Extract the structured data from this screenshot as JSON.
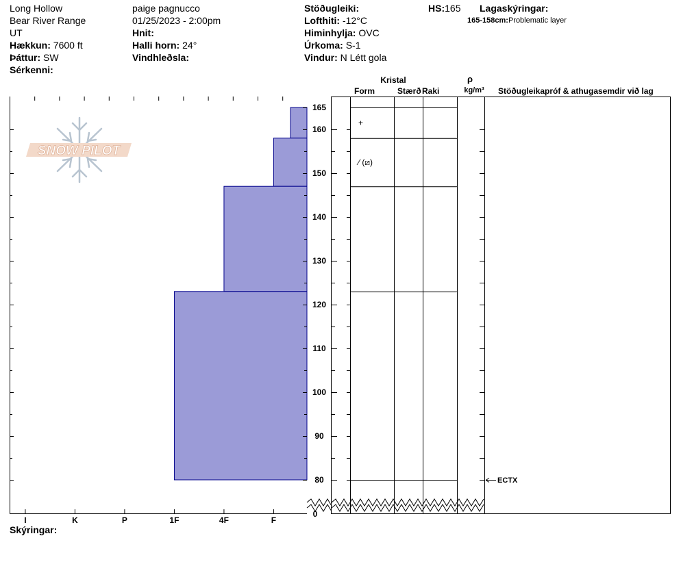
{
  "header": {
    "location": "Long Hollow",
    "range": "Bear River Range",
    "state": "UT",
    "elevation_label": "Hækkun:",
    "elevation": "7600 ft",
    "aspect_label": "Þáttur:",
    "aspect": "SW",
    "features_label": "Sérkenni:",
    "observer": "paige pagnucco",
    "datetime": "01/25/2023 - 2:00pm",
    "coords_label": "Hnit:",
    "slope_label": "Halli horn:",
    "slope": "24°",
    "wind_loading_label": "Vindhleðsla:",
    "stability_label": "Stöðugleiki:",
    "air_temp_label": "Lofthiti:",
    "air_temp": "-12°C",
    "sky_label": "Himinhylja:",
    "sky": "OVC",
    "precip_label": "Úrkoma:",
    "precip": "S-1",
    "wind_label": "Vindur:",
    "wind": "N Létt gola",
    "hs_label": "HS:",
    "hs": "165",
    "legend_label": "Lagaskýringar:",
    "legend_range": "165-158cm:",
    "legend_text": "Problematic layer",
    "notes_label": "Skýringar:"
  },
  "logo_text": "SNOW PILOT",
  "columns": {
    "crystal": "Kristal",
    "form": "Form",
    "size": "Stærð",
    "moisture": "Raki",
    "rho": "ρ",
    "density_unit": "kg/m³",
    "comments": "Stöðugleikapróf & athugasemdir við lag"
  },
  "colors": {
    "layer_fill": "#9b9bd7",
    "layer_stroke": "#00008b"
  },
  "chart_data": {
    "type": "bar",
    "y_axis": {
      "min": 0,
      "max": 165,
      "ticks": [
        80,
        90,
        100,
        110,
        120,
        130,
        140,
        150,
        160,
        165
      ],
      "zero_label": "0",
      "break_below": 80
    },
    "x_axis": {
      "categories": [
        "I",
        "K",
        "P",
        "1F",
        "4F",
        "F"
      ]
    },
    "layers": [
      {
        "top": 165,
        "bottom": 158,
        "hardness": "F-",
        "hardness_value": 0.33,
        "form_symbol": "+"
      },
      {
        "top": 158,
        "bottom": 147,
        "hardness": "F",
        "hardness_value": 0.67,
        "form_symbol": "⁄ (⧄)"
      },
      {
        "top": 147,
        "bottom": 123,
        "hardness": "4F",
        "hardness_value": 1.67,
        "form_symbol": ""
      },
      {
        "top": 123,
        "bottom": 80,
        "hardness": "1F",
        "hardness_value": 2.67,
        "form_symbol": ""
      }
    ],
    "tests": [
      {
        "height": 80,
        "label": "ECTX"
      }
    ]
  }
}
